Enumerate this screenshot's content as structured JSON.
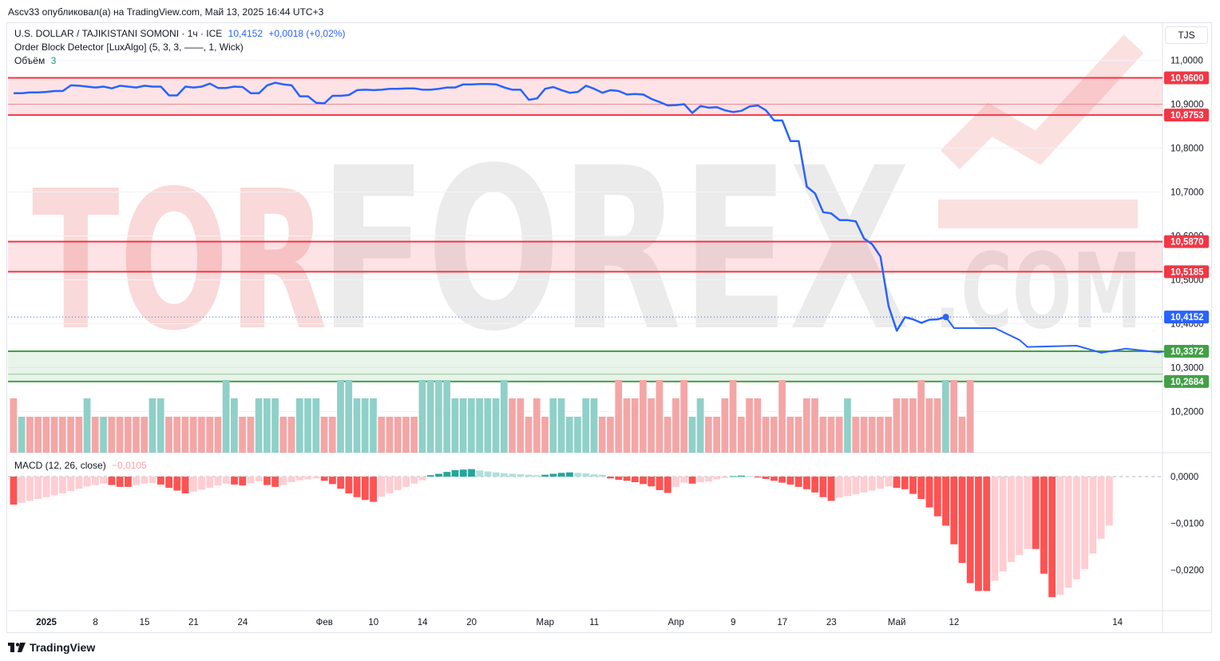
{
  "header": {
    "author_line": "Ascv33 опубликовал(а) на TradingView.com, Май 13, 2025 16:44 UTC+3"
  },
  "legend": {
    "symbol": "U.S. DOLLAR / TAJIKISTANI SOMONI · 1ч · ICE",
    "price": "10,4152",
    "change": "+0,0018 (+0,02%)",
    "indicator": "Order Block Detector [LuxAlgo] (5, 3, 3, ——, 1, Wick)",
    "volume_label": "Объём",
    "volume_value": "3",
    "macd_label": "MACD (12, 26, close)",
    "macd_value": "−0,0105"
  },
  "currency": "TJS",
  "footer": {
    "brand": "TradingView"
  },
  "watermark": {
    "text_left": "TOR",
    "text_mid": "FOREX",
    "text_com": ".COM"
  },
  "colors": {
    "line": "#2962ff",
    "bear_zone": "#f23645",
    "bull_zone": "#43a047",
    "vol_up": "#8fd0c8",
    "vol_down": "#f4a6a6",
    "macd_neg_strong": "#ff5252",
    "macd_neg_weak": "#ffcdd2",
    "macd_pos_strong": "#26a69a",
    "macd_pos_weak": "#b2dfdb"
  },
  "chart_data": [
    {
      "type": "line",
      "title": "U.S. DOLLAR / TAJIKISTANI SOMONI · 1ч · ICE",
      "ylim": [
        10.15,
        11.05
      ],
      "yticks": [
        "11,0000",
        "10,9000",
        "10,8000",
        "10,7000",
        "10,6000",
        "10,5000",
        "10,4000",
        "10,3000",
        "10,2000"
      ],
      "ytick_values": [
        11.0,
        10.9,
        10.8,
        10.7,
        10.6,
        10.5,
        10.4,
        10.3,
        10.2
      ],
      "price_tags": [
        {
          "label": "10,9600",
          "value": 10.96,
          "kind": "bear"
        },
        {
          "label": "10,8753",
          "value": 10.8753,
          "kind": "bear"
        },
        {
          "label": "10,5870",
          "value": 10.587,
          "kind": "bear"
        },
        {
          "label": "10,5185",
          "value": 10.5185,
          "kind": "bear"
        },
        {
          "label": "10,4152",
          "value": 10.4152,
          "kind": "last"
        },
        {
          "label": "10,3372",
          "value": 10.3372,
          "kind": "bull"
        },
        {
          "label": "10,2684",
          "value": 10.2684,
          "kind": "bull"
        }
      ],
      "zones": [
        {
          "kind": "bear",
          "top": 10.96,
          "bottom": 10.8753,
          "mid": 10.9
        },
        {
          "kind": "bear",
          "top": 10.587,
          "bottom": 10.5185
        },
        {
          "kind": "bull",
          "top": 10.3372,
          "bottom": 10.2684,
          "mid": 10.285
        }
      ],
      "x_index_range": [
        0,
        141
      ],
      "xticks": [
        {
          "label": "2025",
          "i": 4.5,
          "bold": true
        },
        {
          "label": "8",
          "i": 10.5
        },
        {
          "label": "15",
          "i": 16.5
        },
        {
          "label": "21",
          "i": 22.5
        },
        {
          "label": "24",
          "i": 28.5
        },
        {
          "label": "Фев",
          "i": 38.5
        },
        {
          "label": "10",
          "i": 44.5
        },
        {
          "label": "14",
          "i": 50.5
        },
        {
          "label": "20",
          "i": 56.5
        },
        {
          "label": "Мар",
          "i": 65.5
        },
        {
          "label": "11",
          "i": 71.5
        },
        {
          "label": "Апр",
          "i": 81.5
        },
        {
          "label": "9",
          "i": 88.5
        },
        {
          "label": "17",
          "i": 94.5
        },
        {
          "label": "23",
          "i": 100.5
        },
        {
          "label": "Май",
          "i": 108.5
        },
        {
          "label": "12",
          "i": 115.5
        },
        {
          "label": "14",
          "i": 135.5
        }
      ],
      "series": [
        {
          "values": [
            10.925,
            10.925,
            10.927,
            10.927,
            10.928,
            10.93,
            10.93,
            10.943,
            10.942,
            10.94,
            10.938,
            10.94,
            10.936,
            10.942,
            10.94,
            10.938,
            10.942,
            10.94,
            10.94,
            10.92,
            10.92,
            10.94,
            10.938,
            10.94,
            10.947,
            10.937,
            10.937,
            10.94,
            10.939,
            10.925,
            10.925,
            10.943,
            10.949,
            10.945,
            10.943,
            10.918,
            10.918,
            10.903,
            10.902,
            10.919,
            10.919,
            10.921,
            10.932,
            10.933,
            10.932,
            10.933,
            10.935,
            10.935,
            10.936,
            10.936,
            10.933,
            10.933,
            10.935,
            10.938,
            10.938,
            10.945,
            10.945,
            10.946,
            10.946,
            10.945,
            10.938,
            10.933,
            10.933,
            10.91,
            10.913,
            10.935,
            10.939,
            10.932,
            10.926,
            10.928,
            10.942,
            10.935,
            10.926,
            10.932,
            10.93,
            10.922,
            10.923,
            10.922,
            10.912,
            10.905,
            10.897,
            10.898,
            10.9,
            10.88,
            10.896,
            10.892,
            10.893,
            10.886,
            10.882,
            10.885,
            10.895,
            10.897,
            10.886,
            10.863,
            10.863,
            10.816,
            10.816,
            10.712,
            10.697,
            10.654,
            10.651,
            10.636,
            10.636,
            10.633,
            10.594,
            10.581,
            10.553,
            10.44,
            10.384,
            10.415,
            10.41,
            10.402,
            10.409,
            10.41,
            10.4152
          ],
          "projection": [
            [
              114,
              10.4152
            ],
            [
              115,
              10.39
            ],
            [
              120,
              10.39
            ],
            [
              123,
              10.363
            ],
            [
              124,
              10.347
            ],
            [
              130,
              10.35
            ],
            [
              133,
              10.334
            ],
            [
              136,
              10.343
            ],
            [
              140,
              10.335
            ],
            [
              142,
              10.34
            ],
            [
              145,
              10.341
            ]
          ]
        }
      ]
    },
    {
      "type": "bar",
      "title": "Объём",
      "legend_value": "3",
      "direction": [
        0,
        1,
        0,
        0,
        0,
        0,
        0,
        0,
        0,
        1,
        0,
        1,
        0,
        0,
        0,
        0,
        0,
        1,
        1,
        0,
        0,
        0,
        0,
        0,
        0,
        0,
        1,
        1,
        0,
        0,
        1,
        1,
        1,
        0,
        0,
        1,
        1,
        1,
        0,
        0,
        1,
        1,
        1,
        1,
        1,
        0,
        0,
        0,
        0,
        0,
        1,
        1,
        1,
        1,
        1,
        1,
        1,
        1,
        1,
        1,
        1,
        0,
        0,
        0,
        0,
        0,
        1,
        1,
        1,
        1,
        1,
        1,
        0,
        0,
        0,
        0,
        0,
        0,
        0,
        0,
        0,
        0,
        0,
        1,
        1,
        0,
        0,
        0,
        0,
        0,
        0,
        0,
        0,
        0,
        0,
        0,
        0,
        0,
        0,
        0,
        0,
        0,
        1,
        0,
        0,
        0,
        0,
        0,
        0,
        0,
        0,
        0,
        0,
        0,
        1
      ],
      "values": [
        2,
        1,
        1,
        1,
        1,
        1,
        1,
        1,
        1,
        2,
        1,
        1,
        1,
        1,
        1,
        1,
        1,
        2,
        2,
        1,
        1,
        1,
        1,
        1,
        1,
        1,
        3,
        2,
        1,
        1,
        2,
        2,
        2,
        1,
        1,
        2,
        2,
        2,
        1,
        1,
        3,
        3,
        2,
        2,
        2,
        1,
        1,
        1,
        1,
        1,
        3,
        3,
        3,
        3,
        2,
        2,
        2,
        2,
        2,
        2,
        3,
        2,
        2,
        1,
        2,
        1,
        2,
        2,
        1,
        1,
        2,
        2,
        1,
        1,
        3,
        2,
        2,
        3,
        2,
        3,
        1,
        2,
        3,
        1,
        2,
        1,
        1,
        2,
        3,
        1,
        2,
        2,
        1,
        1,
        3,
        1,
        1,
        2,
        2,
        1,
        1,
        1,
        2,
        1,
        1,
        1,
        1,
        1,
        2,
        2,
        2,
        3,
        2,
        2,
        3,
        3,
        1,
        3
      ]
    },
    {
      "type": "bar",
      "title": "MACD (12, 26, close)",
      "legend_value": "−0,0105",
      "ylim": [
        -0.0265,
        0.0023
      ],
      "yticks": [
        "0,0000",
        "−0,0100",
        "−0,0200"
      ],
      "ytick_values": [
        0.0,
        -0.01,
        -0.02
      ],
      "values": [
        -0.006,
        -0.0056,
        -0.0052,
        -0.0048,
        -0.0044,
        -0.004,
        -0.0036,
        -0.0031,
        -0.0026,
        -0.0021,
        -0.0018,
        -0.0015,
        -0.0018,
        -0.0022,
        -0.0022,
        -0.0018,
        -0.0015,
        -0.0014,
        -0.0017,
        -0.0024,
        -0.003,
        -0.0036,
        -0.0032,
        -0.0028,
        -0.0024,
        -0.0019,
        -0.0015,
        -0.0017,
        -0.0019,
        -0.0014,
        -0.001,
        -0.0018,
        -0.0022,
        -0.0018,
        -0.0012,
        -0.0008,
        -0.0006,
        -0.0004,
        -0.0009,
        -0.0016,
        -0.0026,
        -0.0036,
        -0.0044,
        -0.005,
        -0.0054,
        -0.0043,
        -0.0036,
        -0.0029,
        -0.0022,
        -0.0015,
        -0.0008,
        0.0003,
        0.0006,
        0.001,
        0.0014,
        0.0015,
        0.0016,
        0.0013,
        0.0011,
        0.0009,
        0.0007,
        0.0006,
        0.0005,
        0.0004,
        0.0003,
        0.0004,
        0.0006,
        0.0008,
        0.0009,
        0.0008,
        0.0007,
        0.0005,
        0.0004,
        -0.0004,
        -0.0007,
        -0.0009,
        -0.0012,
        -0.0016,
        -0.0021,
        -0.0029,
        -0.0035,
        -0.0022,
        -0.0013,
        -0.0015,
        -0.0012,
        -0.0011,
        -0.0006,
        -0.0003,
        0.0001,
        0.0002,
        0.0001,
        -0.0002,
        -0.0005,
        -0.0009,
        -0.0013,
        -0.0017,
        -0.0022,
        -0.0027,
        -0.0034,
        -0.0044,
        -0.0052,
        -0.0045,
        -0.0042,
        -0.0038,
        -0.0034,
        -0.003,
        -0.0026,
        -0.0021,
        -0.0024,
        -0.0027,
        -0.0037,
        -0.0048,
        -0.0066,
        -0.0085,
        -0.0105,
        -0.0145,
        -0.0185,
        -0.0228,
        -0.0245,
        -0.0245,
        -0.0223,
        -0.0203,
        -0.0183,
        -0.0168,
        -0.0155,
        -0.0155,
        -0.0208,
        -0.0258,
        -0.0253,
        -0.0238,
        -0.022,
        -0.0198,
        -0.0165,
        -0.0133,
        -0.0105
      ]
    }
  ]
}
